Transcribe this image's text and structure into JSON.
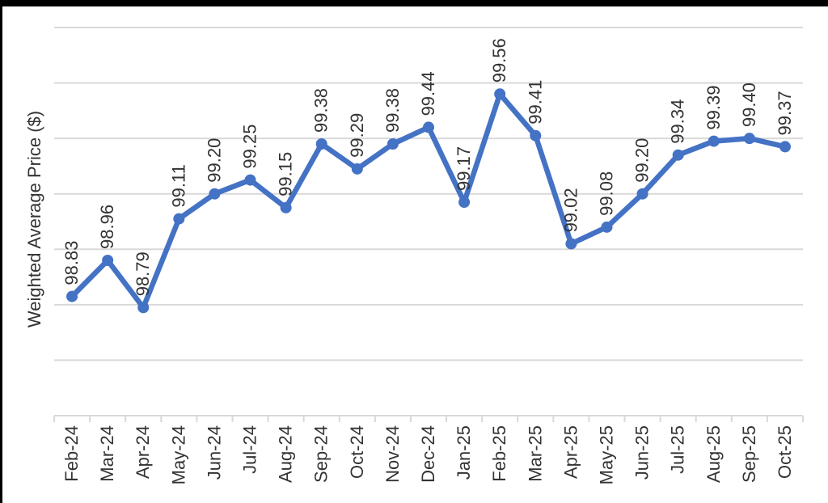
{
  "window": {
    "background": "#FFFFFF",
    "border_color": "#000000"
  },
  "chart_data": {
    "type": "line",
    "title": "",
    "ylabel": "Weighted Average Price ($)",
    "xlabel": "",
    "categories": [
      "Feb-24",
      "Mar-24",
      "Apr-24",
      "May-24",
      "Jun-24",
      "Jul-24",
      "Aug-24",
      "Sep-24",
      "Oct-24",
      "Nov-24",
      "Dec-24",
      "Jan-25",
      "Feb-25",
      "Mar-25",
      "Apr-25",
      "May-25",
      "Jun-25",
      "Jul-25",
      "Aug-25",
      "Sep-25",
      "Oct-25"
    ],
    "series": [
      {
        "name": "Weighted Average Price",
        "values": [
          98.83,
          98.96,
          98.79,
          99.11,
          99.2,
          99.25,
          99.15,
          99.38,
          99.29,
          99.38,
          99.44,
          99.17,
          99.56,
          99.41,
          99.02,
          99.08,
          99.2,
          99.34,
          99.39,
          99.4,
          99.37
        ]
      }
    ],
    "data_labels_visible": true,
    "data_label_decimals": 2,
    "data_label_rotation": "vertical",
    "x_label_rotation": "vertical",
    "ylim": [
      98.4,
      99.8
    ],
    "gridline_step": 0.2,
    "grid": "horizontal-only",
    "y_tick_labels_visible": false,
    "legend_position": "none",
    "colors": {
      "line": "#4472C4",
      "marker": "#4472C4",
      "gridline": "#D9D9D9",
      "axis": "#D9D9D9",
      "text": "#333333"
    }
  }
}
